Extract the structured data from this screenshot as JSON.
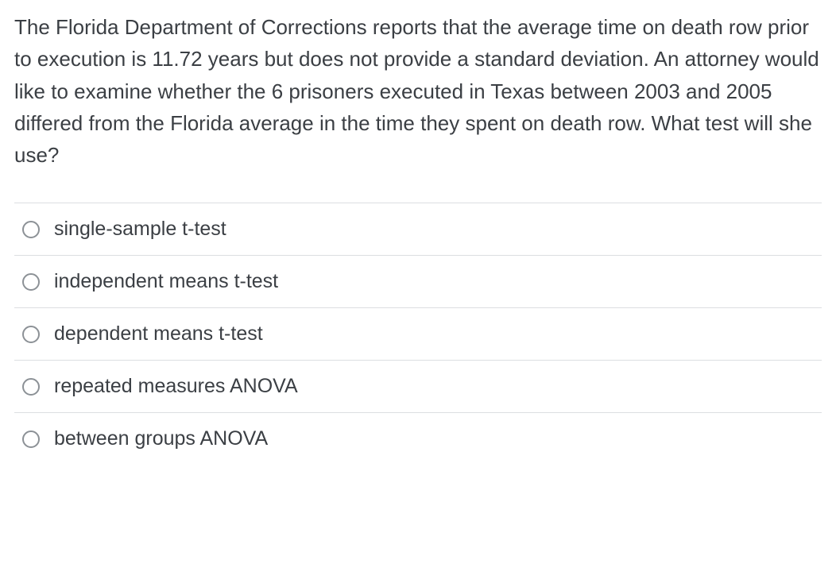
{
  "question": {
    "text": "The Florida Department of Corrections reports that the average time on death row prior to execution is 11.72 years but does not provide a standard deviation. An attorney would like to examine whether the 6 prisoners executed in Texas between 2003 and 2005 differed from the Florida average in the time they spent on death row. What test will she use?",
    "text_color": "#3b3f44",
    "fontsize": 26,
    "options": [
      {
        "label": "single-sample t-test",
        "selected": false
      },
      {
        "label": "independent means t-test",
        "selected": false
      },
      {
        "label": "dependent means t-test",
        "selected": false
      },
      {
        "label": "repeated measures ANOVA",
        "selected": false
      },
      {
        "label": "between groups ANOVA",
        "selected": false
      }
    ],
    "option_fontsize": 25,
    "radio_border_color": "#8c9196",
    "divider_color": "#dcdee1",
    "background_color": "#ffffff"
  }
}
